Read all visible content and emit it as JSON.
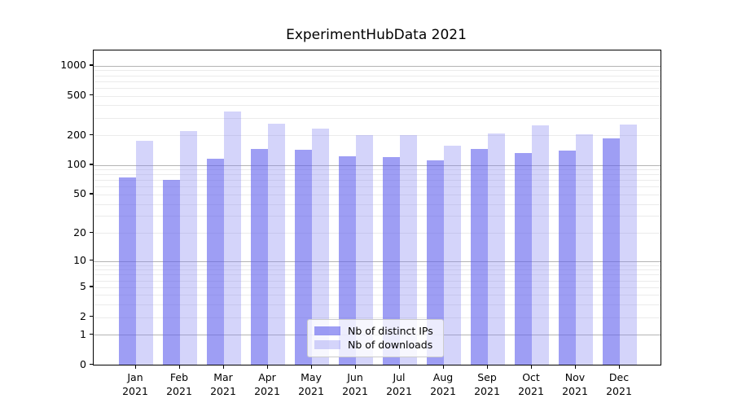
{
  "title": "ExperimentHubData 2021",
  "chart_data": {
    "type": "bar",
    "title": "ExperimentHubData 2021",
    "categories": [
      "Jan 2021",
      "Feb 2021",
      "Mar 2021",
      "Apr 2021",
      "May 2021",
      "Jun 2021",
      "Jul 2021",
      "Aug 2021",
      "Sep 2021",
      "Oct 2021",
      "Nov 2021",
      "Dec 2021"
    ],
    "month_labels": [
      "Jan",
      "Feb",
      "Mar",
      "Apr",
      "May",
      "Jun",
      "Jul",
      "Aug",
      "Sep",
      "Oct",
      "Nov",
      "Dec"
    ],
    "year_label": "2021",
    "series": [
      {
        "name": "Nb of distinct IPs",
        "values": [
          75,
          71,
          115,
          145,
          143,
          123,
          120,
          112,
          145,
          131,
          140,
          185
        ],
        "color": "#a2a2f5",
        "fill": "rgba(99,99,237,0.62)"
      },
      {
        "name": "Nb of downloads",
        "values": [
          174,
          220,
          348,
          261,
          235,
          200,
          199,
          158,
          209,
          250,
          204,
          255
        ],
        "color": "#d9d9f9",
        "fill": "rgba(133,133,240,0.35)"
      }
    ],
    "yscale": "log1p",
    "yticks": [
      0,
      1,
      2,
      5,
      10,
      20,
      50,
      100,
      200,
      500,
      1000
    ],
    "major_gridlines": [
      1,
      10,
      100,
      1000
    ],
    "ylim": [
      0,
      1430
    ],
    "xlabel": "",
    "ylabel": "",
    "grid": "horizontal",
    "legend_position": "lower-center"
  },
  "colors": {
    "spine": "#000000",
    "minor_grid": "#ebebeb",
    "major_grid": "#b4b4b4",
    "legend_border": "#cccccc"
  }
}
